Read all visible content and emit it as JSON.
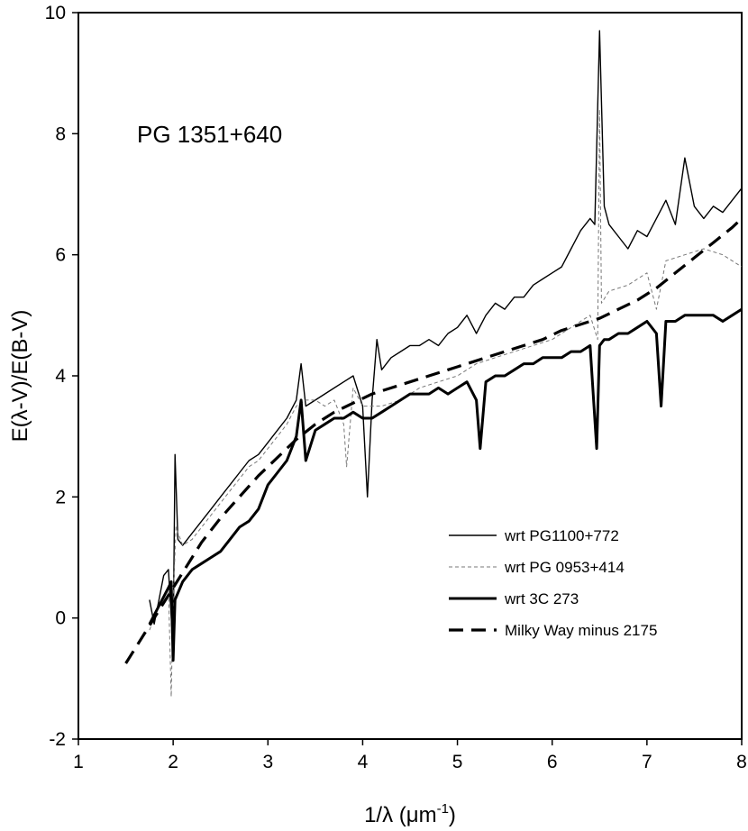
{
  "chart_data": {
    "type": "line",
    "annotation": "PG 1351+640",
    "xlabel": "1/λ (μm",
    "xlabel_sup": "-1",
    "xlabel_close": ")",
    "ylabel": "E(λ-V)/E(B-V)",
    "xlim": [
      1,
      8
    ],
    "ylim": [
      -2,
      10
    ],
    "xticks": [
      1,
      2,
      3,
      4,
      5,
      6,
      7,
      8
    ],
    "yticks": [
      -2,
      0,
      2,
      4,
      6,
      8,
      10
    ],
    "legend_position": "bottom-right",
    "series": [
      {
        "name": "wrt PG1100+772",
        "style": "thin-solid",
        "color": "#000000",
        "x": [
          1.75,
          1.8,
          1.85,
          1.9,
          1.95,
          2.0,
          2.02,
          2.05,
          2.1,
          2.2,
          2.3,
          2.4,
          2.5,
          2.6,
          2.7,
          2.8,
          2.9,
          3.0,
          3.1,
          3.2,
          3.3,
          3.35,
          3.4,
          3.5,
          3.6,
          3.7,
          3.8,
          3.9,
          4.0,
          4.05,
          4.1,
          4.15,
          4.2,
          4.3,
          4.4,
          4.5,
          4.6,
          4.7,
          4.8,
          4.9,
          5.0,
          5.1,
          5.2,
          5.3,
          5.4,
          5.5,
          5.6,
          5.7,
          5.8,
          5.9,
          6.0,
          6.1,
          6.2,
          6.3,
          6.4,
          6.45,
          6.5,
          6.55,
          6.6,
          6.7,
          6.8,
          6.9,
          7.0,
          7.1,
          7.2,
          7.3,
          7.4,
          7.5,
          7.6,
          7.7,
          7.8,
          7.9,
          8.0
        ],
        "values": [
          0.3,
          -0.1,
          0.3,
          0.7,
          0.8,
          -0.5,
          2.7,
          1.3,
          1.2,
          1.4,
          1.6,
          1.8,
          2.0,
          2.2,
          2.4,
          2.6,
          2.7,
          2.9,
          3.1,
          3.3,
          3.6,
          4.2,
          3.5,
          3.6,
          3.7,
          3.8,
          3.9,
          4.0,
          3.5,
          2.0,
          3.6,
          4.6,
          4.1,
          4.3,
          4.4,
          4.5,
          4.5,
          4.6,
          4.5,
          4.7,
          4.8,
          5.0,
          4.7,
          5.0,
          5.2,
          5.1,
          5.3,
          5.3,
          5.5,
          5.6,
          5.7,
          5.8,
          6.1,
          6.4,
          6.6,
          6.5,
          9.7,
          6.8,
          6.5,
          6.3,
          6.1,
          6.4,
          6.3,
          6.6,
          6.9,
          6.5,
          7.6,
          6.8,
          6.6,
          6.8,
          6.7,
          6.9,
          7.1
        ]
      },
      {
        "name": "wrt PG 0953+414",
        "style": "thin-dashed",
        "color": "#777777",
        "x": [
          1.75,
          1.85,
          1.95,
          1.98,
          2.0,
          2.03,
          2.1,
          2.2,
          2.3,
          2.4,
          2.5,
          2.6,
          2.7,
          2.8,
          2.9,
          3.0,
          3.1,
          3.2,
          3.3,
          3.4,
          3.5,
          3.6,
          3.7,
          3.8,
          3.83,
          3.9,
          4.0,
          4.2,
          4.4,
          4.6,
          4.8,
          5.0,
          5.2,
          5.4,
          5.6,
          5.8,
          6.0,
          6.2,
          6.4,
          6.48,
          6.5,
          6.52,
          6.6,
          6.8,
          7.0,
          7.1,
          7.2,
          7.4,
          7.6,
          7.8,
          8.0
        ],
        "values": [
          -0.2,
          0.2,
          0.5,
          -1.3,
          0.3,
          1.5,
          1.2,
          1.3,
          1.5,
          1.7,
          1.9,
          2.1,
          2.3,
          2.5,
          2.6,
          2.8,
          3.0,
          3.2,
          3.5,
          3.6,
          3.6,
          3.5,
          3.6,
          3.2,
          2.5,
          3.8,
          3.5,
          3.5,
          3.6,
          3.8,
          3.9,
          4.0,
          4.2,
          4.3,
          4.4,
          4.5,
          4.6,
          4.8,
          5.0,
          4.6,
          8.4,
          5.2,
          5.4,
          5.5,
          5.7,
          5.1,
          5.9,
          6.0,
          6.1,
          6.0,
          5.8
        ]
      },
      {
        "name": "wrt 3C 273",
        "style": "thick-solid",
        "color": "#000000",
        "x": [
          1.75,
          1.85,
          1.95,
          1.98,
          2.0,
          2.02,
          2.1,
          2.2,
          2.3,
          2.4,
          2.5,
          2.6,
          2.7,
          2.8,
          2.9,
          3.0,
          3.1,
          3.2,
          3.3,
          3.35,
          3.4,
          3.5,
          3.6,
          3.7,
          3.8,
          3.9,
          4.0,
          4.1,
          4.2,
          4.3,
          4.4,
          4.5,
          4.6,
          4.7,
          4.8,
          4.9,
          5.0,
          5.1,
          5.2,
          5.24,
          5.3,
          5.4,
          5.5,
          5.6,
          5.7,
          5.8,
          5.9,
          6.0,
          6.1,
          6.2,
          6.3,
          6.4,
          6.47,
          6.5,
          6.55,
          6.6,
          6.7,
          6.8,
          6.9,
          7.0,
          7.1,
          7.15,
          7.2,
          7.3,
          7.4,
          7.5,
          7.6,
          7.7,
          7.8,
          7.9,
          8.0
        ],
        "values": [
          -0.1,
          0.2,
          0.5,
          0.6,
          -0.7,
          0.3,
          0.6,
          0.8,
          0.9,
          1.0,
          1.1,
          1.3,
          1.5,
          1.6,
          1.8,
          2.2,
          2.4,
          2.6,
          3.0,
          3.6,
          2.6,
          3.1,
          3.2,
          3.3,
          3.3,
          3.4,
          3.3,
          3.3,
          3.4,
          3.5,
          3.6,
          3.7,
          3.7,
          3.7,
          3.8,
          3.7,
          3.8,
          3.9,
          3.6,
          2.8,
          3.9,
          4.0,
          4.0,
          4.1,
          4.2,
          4.2,
          4.3,
          4.3,
          4.3,
          4.4,
          4.4,
          4.5,
          2.8,
          4.5,
          4.6,
          4.6,
          4.7,
          4.7,
          4.8,
          4.9,
          4.7,
          3.5,
          4.9,
          4.9,
          5.0,
          5.0,
          5.0,
          5.0,
          4.9,
          5.0,
          5.1
        ]
      },
      {
        "name": "Milky Way minus 2175",
        "style": "thick-dashed",
        "color": "#000000",
        "x": [
          1.5,
          1.7,
          1.9,
          2.1,
          2.3,
          2.5,
          2.7,
          2.9,
          3.1,
          3.3,
          3.5,
          3.7,
          3.9,
          4.1,
          4.3,
          4.5,
          4.7,
          4.9,
          5.1,
          5.3,
          5.5,
          5.7,
          5.9,
          6.1,
          6.3,
          6.5,
          6.7,
          6.9,
          7.1,
          7.3,
          7.5,
          7.7,
          7.9,
          8.0
        ],
        "values": [
          -0.75,
          -0.25,
          0.25,
          0.75,
          1.25,
          1.65,
          2.0,
          2.35,
          2.65,
          2.95,
          3.2,
          3.4,
          3.55,
          3.7,
          3.8,
          3.9,
          4.0,
          4.1,
          4.2,
          4.3,
          4.4,
          4.5,
          4.6,
          4.75,
          4.85,
          4.95,
          5.1,
          5.25,
          5.45,
          5.7,
          5.95,
          6.2,
          6.45,
          6.6
        ]
      }
    ]
  }
}
